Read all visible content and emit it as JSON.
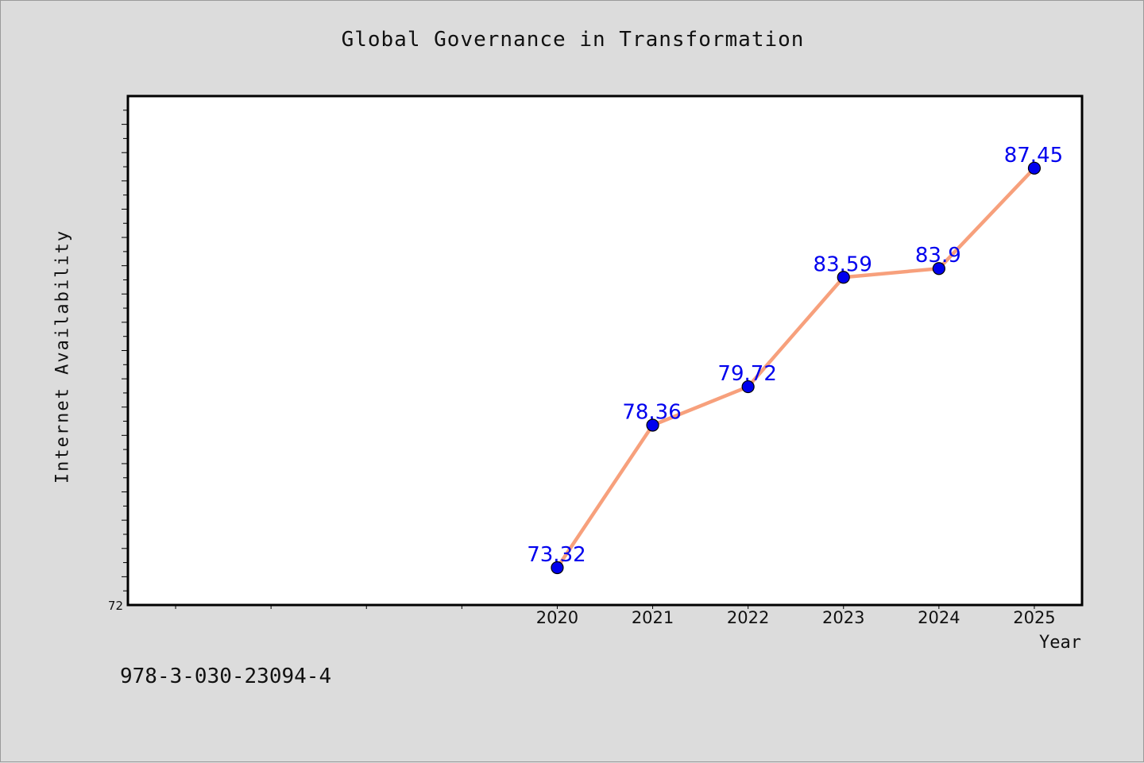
{
  "chart_data": {
    "type": "line",
    "title": "Global Governance in Transformation",
    "xlabel": "Year",
    "ylabel": "Internet Availability",
    "categories": [
      "2020",
      "2021",
      "2022",
      "2023",
      "2024",
      "2025"
    ],
    "series": [
      {
        "values": [
          73.32,
          78.36,
          79.72,
          83.59,
          83.9,
          87.45
        ],
        "data_labels": [
          "73.32",
          "78.36",
          "79.72",
          "83.59",
          "83.9",
          "87.45"
        ],
        "color": "#f7a07c",
        "marker_color": "#0000ee"
      }
    ],
    "ylim": [
      72,
      90
    ],
    "y_tick_labels": [
      "72"
    ],
    "xlim": [
      2015.5,
      2025.5
    ],
    "grid": false,
    "legend": "none"
  },
  "footer": {
    "code": "978-3-030-23094-4"
  },
  "colors": {
    "background": "#dcdcdc",
    "plot_background": "#ffffff",
    "line": "#f7a07c",
    "marker": "#0000ee",
    "data_label": "#0000ee"
  }
}
